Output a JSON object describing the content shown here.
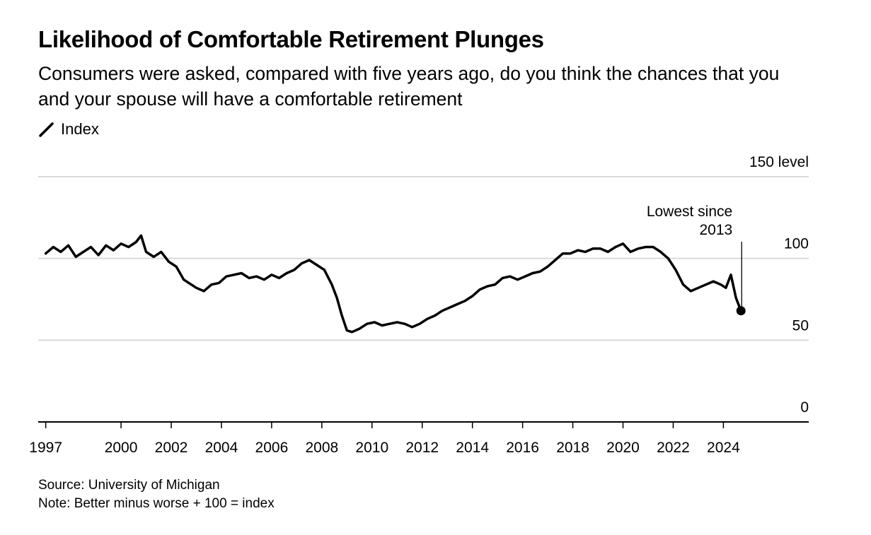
{
  "header": {
    "title": "Likelihood of Comfortable Retirement Plunges",
    "subtitle": "Consumers were asked, compared with five years ago, do you think the chances that you and your spouse will have a comfortable retirement",
    "legend_label": "Index"
  },
  "footer": {
    "source": "Source: University of Michigan",
    "note": "Note: Better minus worse + 100 = index"
  },
  "chart_data": {
    "type": "line",
    "title": "Likelihood of Comfortable Retirement Plunges",
    "xlabel": "",
    "ylabel": "",
    "ylim": [
      0,
      150
    ],
    "y_unit_label": "level",
    "yticks": [
      0,
      50,
      100,
      150
    ],
    "xticks": [
      1997,
      2000,
      2002,
      2004,
      2006,
      2008,
      2010,
      2012,
      2014,
      2016,
      2018,
      2020,
      2022,
      2024
    ],
    "xlim": [
      1996.7,
      2027.4
    ],
    "grid": true,
    "legend": "top-left",
    "colors": {
      "line": "#000000",
      "grid": "#d9d9d9",
      "axis": "#000000"
    },
    "series": [
      {
        "name": "Index",
        "x": [
          1997.0,
          1997.3,
          1997.6,
          1997.9,
          1998.2,
          1998.5,
          1998.8,
          1999.1,
          1999.4,
          1999.7,
          2000.0,
          2000.3,
          2000.6,
          2000.8,
          2001.0,
          2001.3,
          2001.6,
          2001.9,
          2002.2,
          2002.5,
          2002.8,
          2003.0,
          2003.3,
          2003.6,
          2003.9,
          2004.2,
          2004.5,
          2004.8,
          2005.1,
          2005.4,
          2005.7,
          2006.0,
          2006.3,
          2006.6,
          2006.9,
          2007.2,
          2007.5,
          2007.8,
          2008.1,
          2008.4,
          2008.6,
          2008.8,
          2009.0,
          2009.2,
          2009.5,
          2009.8,
          2010.1,
          2010.4,
          2010.7,
          2011.0,
          2011.3,
          2011.6,
          2011.9,
          2012.2,
          2012.5,
          2012.8,
          2013.1,
          2013.4,
          2013.7,
          2014.0,
          2014.3,
          2014.6,
          2014.9,
          2015.2,
          2015.5,
          2015.8,
          2016.1,
          2016.4,
          2016.7,
          2017.0,
          2017.3,
          2017.6,
          2017.9,
          2018.2,
          2018.5,
          2018.8,
          2019.1,
          2019.4,
          2019.7,
          2020.0,
          2020.3,
          2020.6,
          2020.9,
          2021.2,
          2021.5,
          2021.8,
          2022.1,
          2022.4,
          2022.7,
          2023.0,
          2023.3,
          2023.6,
          2023.9,
          2024.1,
          2024.3,
          2024.5,
          2024.7
        ],
        "values": [
          103,
          107,
          104,
          108,
          101,
          104,
          107,
          102,
          108,
          105,
          109,
          107,
          110,
          114,
          104,
          101,
          104,
          98,
          95,
          87,
          84,
          82,
          80,
          84,
          85,
          89,
          90,
          91,
          88,
          89,
          87,
          90,
          88,
          91,
          93,
          97,
          99,
          96,
          93,
          84,
          76,
          65,
          56,
          55,
          57,
          60,
          61,
          59,
          60,
          61,
          60,
          58,
          60,
          63,
          65,
          68,
          70,
          72,
          74,
          77,
          81,
          83,
          84,
          88,
          89,
          87,
          89,
          91,
          92,
          95,
          99,
          103,
          103,
          105,
          104,
          106,
          106,
          104,
          107,
          109,
          104,
          106,
          107,
          107,
          104,
          100,
          93,
          84,
          80,
          82,
          84,
          86,
          84,
          82,
          90,
          76,
          68
        ]
      }
    ],
    "annotations": [
      {
        "text_line1": "Lowest since",
        "text_line2": "2013",
        "x": 2024.7,
        "y": 68
      }
    ]
  }
}
